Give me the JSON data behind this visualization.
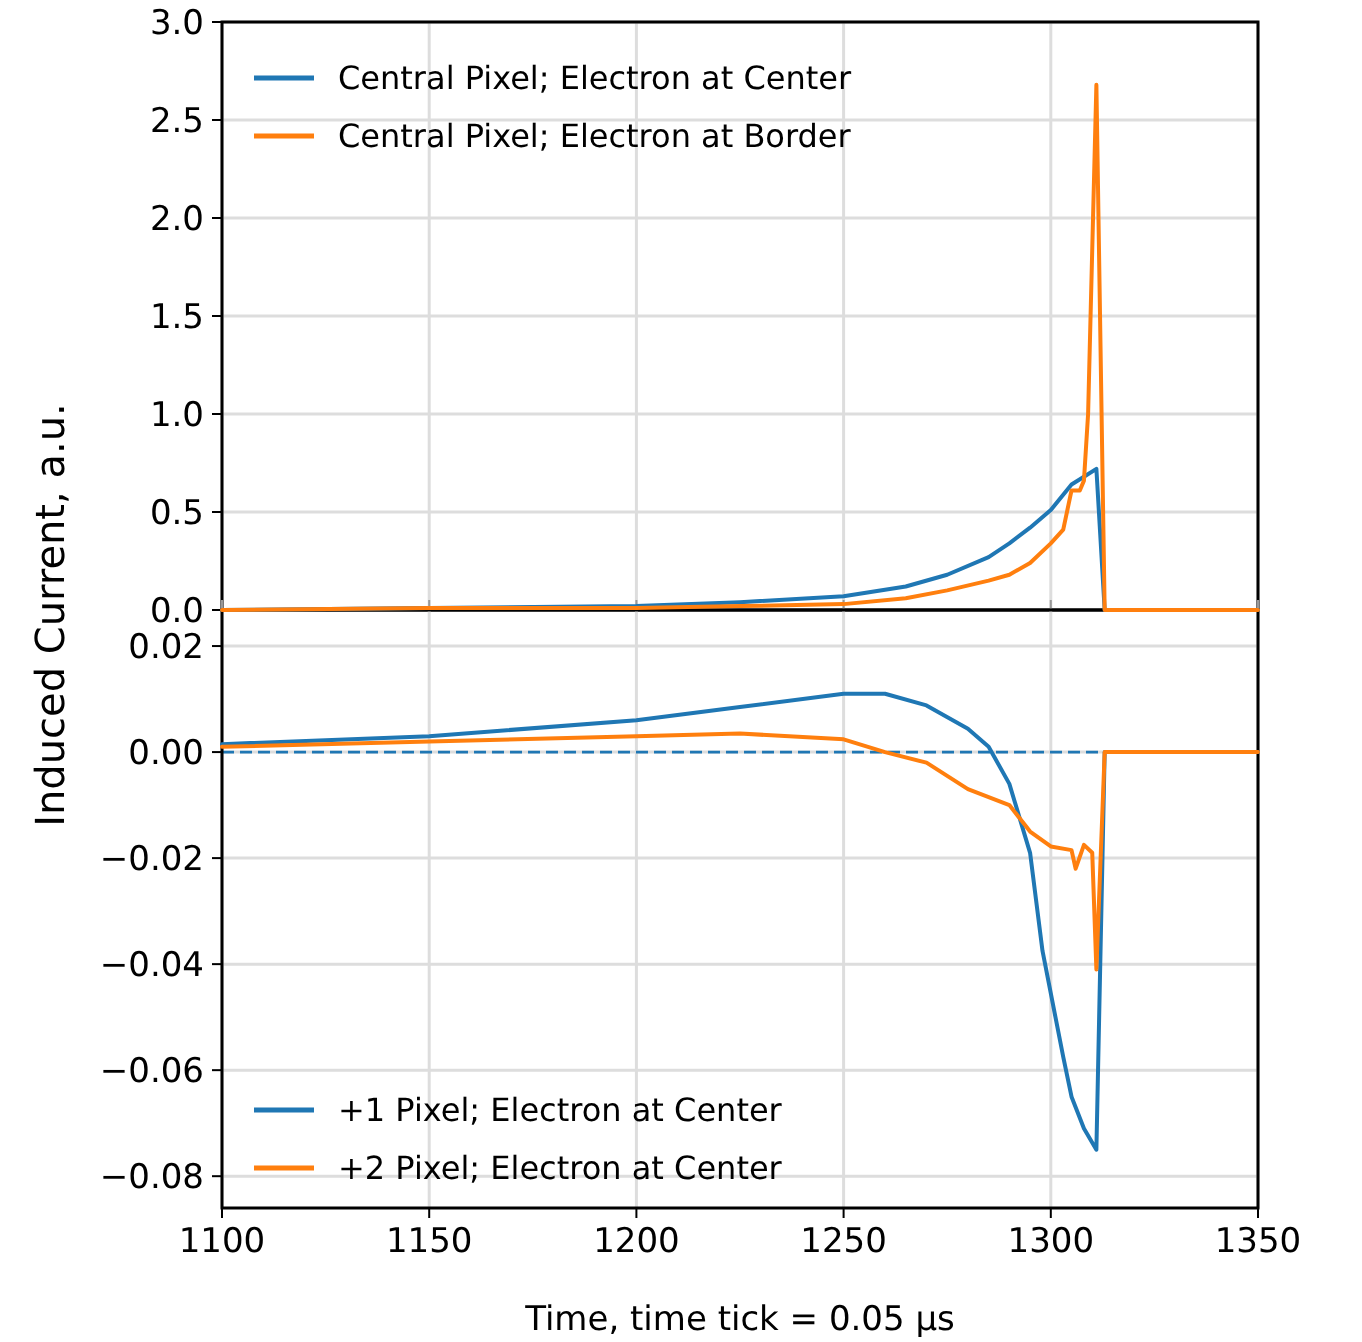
{
  "chart_data": [
    {
      "type": "line",
      "ylabel": "Induced Current, a.u.",
      "xlim": [
        1100,
        1350
      ],
      "xticks": [
        {
          "value": 1100,
          "label": null
        },
        {
          "value": 1150,
          "label": null
        },
        {
          "value": 1200,
          "label": null
        },
        {
          "value": 1250,
          "label": null
        },
        {
          "value": 1300,
          "label": null
        },
        {
          "value": 1350,
          "label": null
        }
      ],
      "ylim": [
        0,
        3
      ],
      "yticks": [
        {
          "value": 0,
          "label": "0.0"
        },
        {
          "value": 0.5,
          "label": "0.5"
        },
        {
          "value": 1,
          "label": "1.0"
        },
        {
          "value": 1.5,
          "label": "1.5"
        },
        {
          "value": 2,
          "label": "2.0"
        },
        {
          "value": 2.5,
          "label": "2.5"
        },
        {
          "value": 3,
          "label": "3.0"
        }
      ],
      "tick_labels": "y",
      "grid": true,
      "legend": "top left",
      "series": [
        {
          "name": "Central Pixel; Electron at Center",
          "color": "#1f77b4",
          "x": [
            1100,
            1150,
            1200,
            1225,
            1250,
            1265,
            1275,
            1285,
            1290,
            1295,
            1300,
            1305,
            1308,
            1311,
            1313,
            1350
          ],
          "values": [
            0,
            0.01,
            0.02,
            0.04,
            0.07,
            0.12,
            0.18,
            0.27,
            0.34,
            0.42,
            0.51,
            0.64,
            0.68,
            0.72,
            0,
            0
          ]
        },
        {
          "name": "Central Pixel; Electron at Border",
          "color": "#ff7f0e",
          "x": [
            1100,
            1150,
            1200,
            1225,
            1250,
            1265,
            1275,
            1285,
            1290,
            1295,
            1300,
            1303,
            1305,
            1307,
            1308,
            1309,
            1311,
            1313,
            1350
          ],
          "values": [
            0,
            0.01,
            0.01,
            0.02,
            0.03,
            0.06,
            0.1,
            0.15,
            0.18,
            0.24,
            0.34,
            0.41,
            0.61,
            0.61,
            0.66,
            1.0,
            2.68,
            0,
            0
          ]
        }
      ]
    },
    {
      "type": "line",
      "xlabel": "Time, time tick = 0.05 μs",
      "xlim": [
        1100,
        1350
      ],
      "xticks": [
        1100,
        1150,
        1200,
        1250,
        1300,
        1350
      ],
      "ylim": [
        -0.086,
        0.0268
      ],
      "yticks": [
        {
          "value": -0.08,
          "label": "−0.08"
        },
        {
          "value": -0.06,
          "label": "−0.06"
        },
        {
          "value": -0.04,
          "label": "−0.04"
        },
        {
          "value": -0.02,
          "label": "−0.02"
        },
        {
          "value": 0,
          "label": "0.00"
        },
        {
          "value": 0.02,
          "label": "0.02"
        }
      ],
      "grid": true,
      "legend": "bottom left",
      "ref_lines": [
        {
          "axis": "y",
          "value": 0,
          "color": "#1f77b4",
          "line_style": "dashed"
        }
      ],
      "series": [
        {
          "name": "+1 Pixel; Electron at Center",
          "color": "#1f77b4",
          "x": [
            1100,
            1150,
            1200,
            1225,
            1250,
            1260,
            1270,
            1280,
            1285,
            1290,
            1295,
            1298,
            1303,
            1305,
            1308,
            1311,
            1313,
            1350
          ],
          "values": [
            0.0015,
            0.003,
            0.006,
            0.0085,
            0.011,
            0.011,
            0.0088,
            0.0044,
            0.001,
            -0.006,
            -0.019,
            -0.0375,
            -0.0575,
            -0.065,
            -0.071,
            -0.075,
            0,
            0
          ]
        },
        {
          "name": "+2 Pixel; Electron at Center",
          "color": "#ff7f0e",
          "x": [
            1100,
            1150,
            1200,
            1225,
            1250,
            1260,
            1270,
            1280,
            1290,
            1295,
            1300,
            1305,
            1306,
            1308,
            1310,
            1311,
            1313,
            1350
          ],
          "values": [
            0.001,
            0.002,
            0.003,
            0.0035,
            0.0024,
            0,
            -0.002,
            -0.007,
            -0.01,
            -0.015,
            -0.0178,
            -0.0185,
            -0.022,
            -0.0175,
            -0.019,
            -0.041,
            0,
            0
          ]
        }
      ]
    }
  ]
}
